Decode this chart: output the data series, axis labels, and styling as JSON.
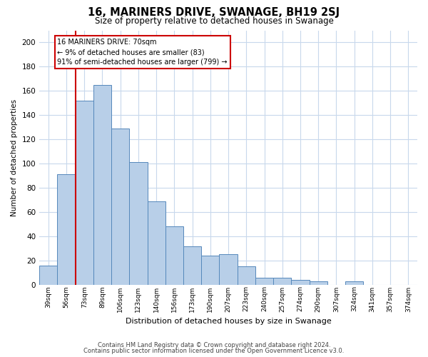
{
  "title": "16, MARINERS DRIVE, SWANAGE, BH19 2SJ",
  "subtitle": "Size of property relative to detached houses in Swanage",
  "xlabel": "Distribution of detached houses by size in Swanage",
  "ylabel": "Number of detached properties",
  "bar_labels": [
    "39sqm",
    "56sqm",
    "73sqm",
    "89sqm",
    "106sqm",
    "123sqm",
    "140sqm",
    "156sqm",
    "173sqm",
    "190sqm",
    "207sqm",
    "223sqm",
    "240sqm",
    "257sqm",
    "274sqm",
    "290sqm",
    "307sqm",
    "324sqm",
    "341sqm",
    "357sqm",
    "374sqm"
  ],
  "bar_values": [
    16,
    91,
    152,
    165,
    129,
    101,
    69,
    48,
    32,
    24,
    25,
    15,
    6,
    6,
    4,
    3,
    0,
    3,
    0,
    0,
    0
  ],
  "bar_color": "#b8cfe8",
  "bar_edge_color": "#5588bb",
  "vline_color": "#cc0000",
  "annotation_text": "16 MARINERS DRIVE: 70sqm\n← 9% of detached houses are smaller (83)\n91% of semi-detached houses are larger (799) →",
  "annotation_box_edge": "#cc0000",
  "ylim": [
    0,
    210
  ],
  "yticks": [
    0,
    20,
    40,
    60,
    80,
    100,
    120,
    140,
    160,
    180,
    200
  ],
  "footnote1": "Contains HM Land Registry data © Crown copyright and database right 2024.",
  "footnote2": "Contains public sector information licensed under the Open Government Licence v3.0.",
  "bg_color": "#ffffff",
  "grid_color": "#c8d8ec"
}
